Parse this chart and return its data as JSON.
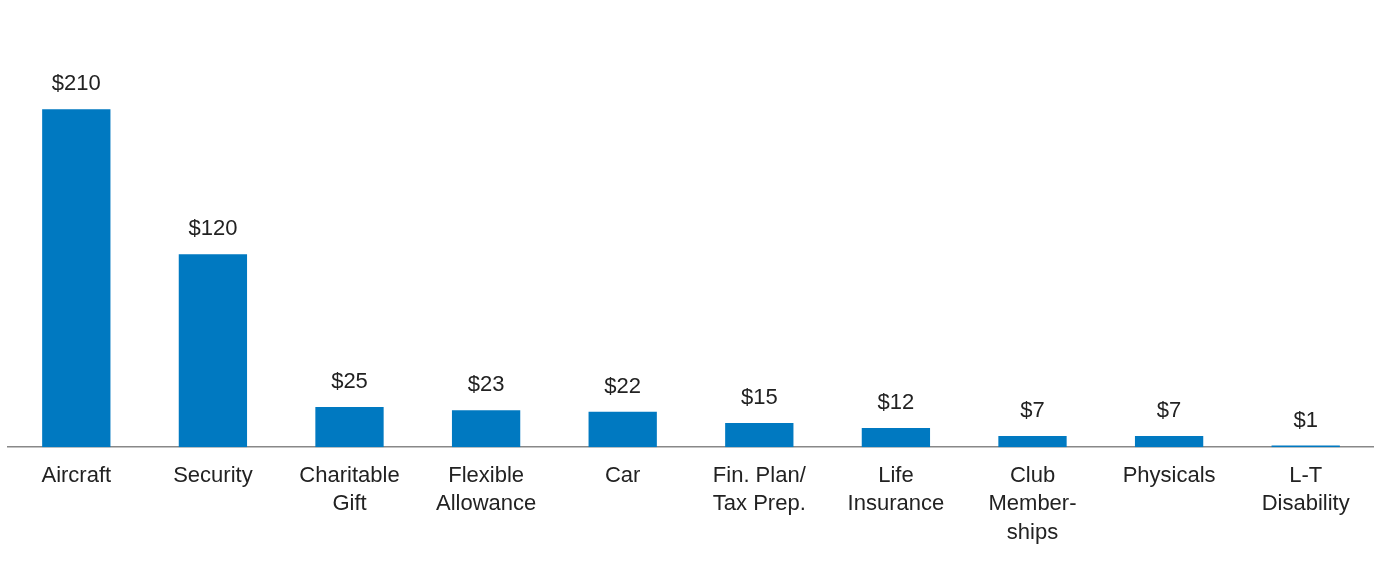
{
  "chart_data": {
    "type": "bar",
    "categories": [
      "Aircraft",
      "Security",
      "Charitable\nGift",
      "Flexible\nAllowance",
      "Car",
      "Fin. Plan/\nTax Prep.",
      "Life\nInsurance",
      "Club\nMember-\nships",
      "Physicals",
      "L-T\nDisability"
    ],
    "values": [
      210,
      120,
      25,
      23,
      22,
      15,
      12,
      7,
      7,
      1
    ],
    "value_labels": [
      "$210",
      "$120",
      "$25",
      "$23",
      "$22",
      "$15",
      "$12",
      "$7",
      "$7",
      "$1"
    ],
    "color": "#0079c1",
    "grid": false,
    "legend": false
  }
}
